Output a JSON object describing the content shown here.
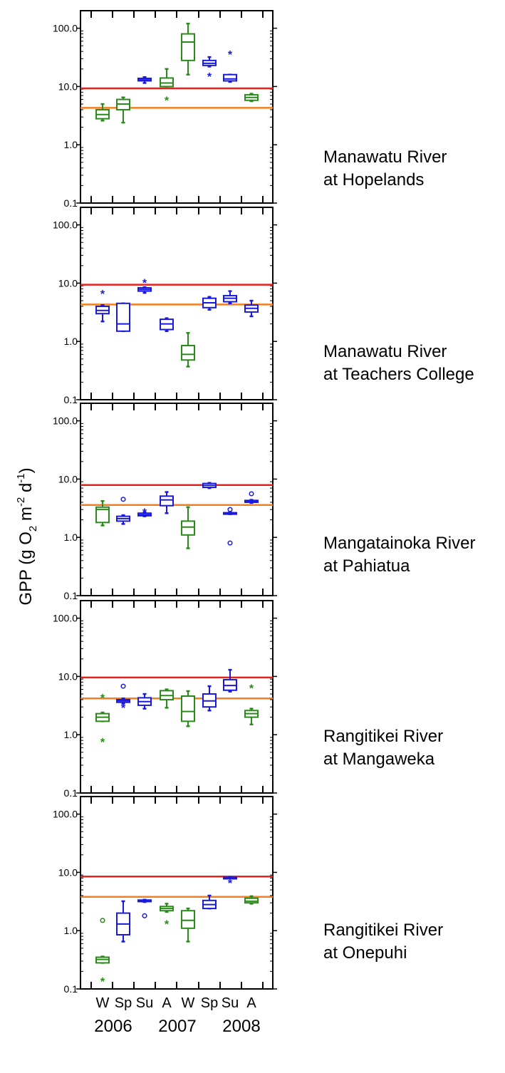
{
  "figure": {
    "ylabel_parts": [
      "GPP (g O",
      "2",
      " m",
      "-2",
      " d",
      "-1",
      ")"
    ],
    "season_labels": [
      "W",
      "Sp",
      "Su",
      "A",
      "W",
      "Sp",
      "Su",
      "A"
    ],
    "year_labels": [
      "2006",
      "2007",
      "2008"
    ],
    "ytick_labels": [
      "0.1",
      "1.0",
      "10.0",
      "100.0"
    ]
  },
  "sites": [
    {
      "line1": "Manawatu River",
      "line2": "at Hopelands"
    },
    {
      "line1": "Manawatu River",
      "line2": "at Teachers College"
    },
    {
      "line1": "Mangatainoka River",
      "line2": "at Pahiatua"
    },
    {
      "line1": "Rangitikei River",
      "line2": "at Mangaweka"
    },
    {
      "line1": "Rangitikei River",
      "line2": "at Onepuhi"
    }
  ],
  "chart_data": [
    {
      "type": "box",
      "site": "Manawatu River at Hopelands",
      "yscale": "log",
      "ylim": [
        0.1,
        200
      ],
      "reference_lines": [
        {
          "value": 9.3,
          "color": "#e8201e"
        },
        {
          "value": 4.3,
          "color": "#f47f20"
        }
      ],
      "boxes": [
        {
          "season": "W",
          "year": "2006",
          "color": "#2a8a1a",
          "min": 2.6,
          "q1": 2.8,
          "median": 3.3,
          "q3": 4.0,
          "max": 5.0,
          "outliers": []
        },
        {
          "season": "Sp",
          "year": "2006",
          "color": "#2a8a1a",
          "min": 2.4,
          "q1": 4.0,
          "median": 5.0,
          "q3": 6.0,
          "max": 6.5,
          "outliers": []
        },
        {
          "season": "Su",
          "year": "2006",
          "color": "#1a1adc",
          "min": 11.5,
          "q1": 12.5,
          "median": 13.0,
          "q3": 13.8,
          "max": 14.5,
          "outliers": []
        },
        {
          "season": "A",
          "year": "2007",
          "color": "#2a8a1a",
          "min": 10.0,
          "q1": 10.0,
          "median": 11.5,
          "q3": 14.0,
          "max": 20.0,
          "outliers": [
            {
              "value": 6.0,
              "marker": "*"
            }
          ]
        },
        {
          "season": "W",
          "year": "2007",
          "color": "#2a8a1a",
          "min": 16.0,
          "q1": 28.0,
          "median": 58.0,
          "q3": 80.0,
          "max": 120.0,
          "outliers": []
        },
        {
          "season": "Sp",
          "year": "2007",
          "color": "#1a1adc",
          "min": 22.0,
          "q1": 23.0,
          "median": 25.0,
          "q3": 28.0,
          "max": 32.0,
          "outliers": [
            {
              "value": 15.5,
              "marker": "*"
            }
          ]
        },
        {
          "season": "Su",
          "year": "2008",
          "color": "#1a1adc",
          "min": 12.0,
          "q1": 12.5,
          "median": 13.5,
          "q3": 16.0,
          "max": 16.0,
          "outliers": [
            {
              "value": 37.0,
              "marker": "*"
            }
          ]
        },
        {
          "season": "A",
          "year": "2008",
          "color": "#2a8a1a",
          "min": 5.6,
          "q1": 5.8,
          "median": 6.5,
          "q3": 7.2,
          "max": 7.5,
          "outliers": []
        }
      ]
    },
    {
      "type": "box",
      "site": "Manawatu River at Teachers College",
      "yscale": "log",
      "ylim": [
        0.1,
        200
      ],
      "reference_lines": [
        {
          "value": 9.4,
          "color": "#e8201e"
        },
        {
          "value": 4.3,
          "color": "#f47f20"
        }
      ],
      "boxes": [
        {
          "season": "W",
          "year": "2006",
          "color": "#1a1adc",
          "min": 2.2,
          "q1": 3.0,
          "median": 3.4,
          "q3": 4.0,
          "max": 4.2,
          "outliers": [
            {
              "value": 6.8,
              "marker": "*"
            }
          ]
        },
        {
          "season": "Sp",
          "year": "2006",
          "color": "#1a1adc",
          "min": 1.5,
          "q1": 1.5,
          "median": 2.0,
          "q3": 4.5,
          "max": 4.5,
          "outliers": []
        },
        {
          "season": "Su",
          "year": "2006",
          "color": "#1a1adc",
          "min": 6.8,
          "q1": 7.3,
          "median": 7.8,
          "q3": 8.3,
          "max": 8.5,
          "outliers": [
            {
              "value": 10.5,
              "marker": "*"
            }
          ]
        },
        {
          "season": "A",
          "year": "2007",
          "color": "#1a1adc",
          "min": 1.5,
          "q1": 1.6,
          "median": 2.0,
          "q3": 2.4,
          "max": 2.5,
          "outliers": []
        },
        {
          "season": "W",
          "year": "2007",
          "color": "#2a8a1a",
          "min": 0.37,
          "q1": 0.48,
          "median": 0.6,
          "q3": 0.85,
          "max": 1.4,
          "outliers": []
        },
        {
          "season": "Sp",
          "year": "2007",
          "color": "#1a1adc",
          "min": 3.5,
          "q1": 3.8,
          "median": 4.6,
          "q3": 5.5,
          "max": 5.8,
          "outliers": []
        },
        {
          "season": "Su",
          "year": "2008",
          "color": "#1a1adc",
          "min": 4.5,
          "q1": 4.8,
          "median": 5.5,
          "q3": 6.1,
          "max": 7.3,
          "outliers": []
        },
        {
          "season": "A",
          "year": "2008",
          "color": "#1a1adc",
          "min": 2.7,
          "q1": 3.2,
          "median": 3.7,
          "q3": 4.2,
          "max": 5.0,
          "outliers": []
        }
      ]
    },
    {
      "type": "box",
      "site": "Mangatainoka River at Pahiatua",
      "yscale": "log",
      "ylim": [
        0.1,
        200
      ],
      "reference_lines": [
        {
          "value": 7.9,
          "color": "#e8201e"
        },
        {
          "value": 3.6,
          "color": "#f47f20"
        }
      ],
      "boxes": [
        {
          "season": "W",
          "year": "2006",
          "color": "#2a8a1a",
          "min": 1.6,
          "q1": 1.8,
          "median": 3.0,
          "q3": 3.3,
          "max": 4.2,
          "outliers": []
        },
        {
          "season": "Sp",
          "year": "2006",
          "color": "#1a1adc",
          "min": 1.7,
          "q1": 1.9,
          "median": 2.1,
          "q3": 2.3,
          "max": 2.4,
          "outliers": [
            {
              "value": 4.5,
              "marker": "o"
            }
          ]
        },
        {
          "season": "Su",
          "year": "2006",
          "color": "#1a1adc",
          "min": 2.3,
          "q1": 2.35,
          "median": 2.45,
          "q3": 2.6,
          "max": 2.7,
          "outliers": [
            {
              "value": 2.8,
              "marker": "*"
            }
          ]
        },
        {
          "season": "A",
          "year": "2007",
          "color": "#1a1adc",
          "min": 2.6,
          "q1": 3.5,
          "median": 4.4,
          "q3": 5.1,
          "max": 6.0,
          "outliers": []
        },
        {
          "season": "W",
          "year": "2007",
          "color": "#2a8a1a",
          "min": 0.65,
          "q1": 1.1,
          "median": 1.5,
          "q3": 1.9,
          "max": 3.3,
          "outliers": []
        },
        {
          "season": "Sp",
          "year": "2007",
          "color": "#1a1adc",
          "min": 7.0,
          "q1": 7.2,
          "median": 7.8,
          "q3": 8.4,
          "max": 8.6,
          "outliers": []
        },
        {
          "season": "Su",
          "year": "2008",
          "color": "#1a1adc",
          "min": 2.5,
          "q1": 2.5,
          "median": 2.6,
          "q3": 2.65,
          "max": 2.7,
          "outliers": [
            {
              "value": 3.0,
              "marker": "o"
            },
            {
              "value": 0.8,
              "marker": "o"
            }
          ]
        },
        {
          "season": "A",
          "year": "2008",
          "color": "#1a1adc",
          "min": 3.9,
          "q1": 4.0,
          "median": 4.2,
          "q3": 4.3,
          "max": 4.4,
          "outliers": [
            {
              "value": 5.6,
              "marker": "o"
            }
          ]
        }
      ]
    },
    {
      "type": "box",
      "site": "Rangitikei River at Mangaweka",
      "yscale": "log",
      "ylim": [
        0.1,
        200
      ],
      "reference_lines": [
        {
          "value": 9.6,
          "color": "#e8201e"
        },
        {
          "value": 4.2,
          "color": "#f47f20"
        }
      ],
      "boxes": [
        {
          "season": "W",
          "year": "2006",
          "color": "#2a8a1a",
          "min": 1.7,
          "q1": 1.7,
          "median": 2.0,
          "q3": 2.3,
          "max": 2.4,
          "outliers": [
            {
              "value": 4.5,
              "marker": "*"
            },
            {
              "value": 0.78,
              "marker": "*"
            }
          ]
        },
        {
          "season": "Sp",
          "year": "2006",
          "color": "#1a1adc",
          "min": 3.4,
          "q1": 3.6,
          "median": 3.8,
          "q3": 4.0,
          "max": 4.2,
          "outliers": [
            {
              "value": 6.8,
              "marker": "o"
            },
            {
              "value": 3.0,
              "marker": "*"
            }
          ]
        },
        {
          "season": "Su",
          "year": "2006",
          "color": "#1a1adc",
          "min": 2.8,
          "q1": 3.2,
          "median": 3.7,
          "q3": 4.3,
          "max": 5.0,
          "outliers": []
        },
        {
          "season": "A",
          "year": "2007",
          "color": "#2a8a1a",
          "min": 2.9,
          "q1": 4.0,
          "median": 4.7,
          "q3": 5.7,
          "max": 6.0,
          "outliers": []
        },
        {
          "season": "W",
          "year": "2007",
          "color": "#2a8a1a",
          "min": 1.4,
          "q1": 1.7,
          "median": 2.5,
          "q3": 4.6,
          "max": 5.6,
          "outliers": []
        },
        {
          "season": "Sp",
          "year": "2007",
          "color": "#1a1adc",
          "min": 2.6,
          "q1": 3.0,
          "median": 3.8,
          "q3": 5.0,
          "max": 6.8,
          "outliers": []
        },
        {
          "season": "Su",
          "year": "2008",
          "color": "#1a1adc",
          "min": 5.5,
          "q1": 5.8,
          "median": 7.0,
          "q3": 8.8,
          "max": 13.0,
          "outliers": []
        },
        {
          "season": "A",
          "year": "2008",
          "color": "#2a8a1a",
          "min": 1.5,
          "q1": 2.0,
          "median": 2.3,
          "q3": 2.6,
          "max": 2.8,
          "outliers": [
            {
              "value": 6.5,
              "marker": "*"
            }
          ]
        }
      ]
    },
    {
      "type": "box",
      "site": "Rangitikei River at Onepuhi",
      "yscale": "log",
      "ylim": [
        0.1,
        200
      ],
      "reference_lines": [
        {
          "value": 8.5,
          "color": "#e8201e"
        },
        {
          "value": 3.8,
          "color": "#f47f20"
        }
      ],
      "boxes": [
        {
          "season": "W",
          "year": "2006",
          "color": "#2a8a1a",
          "min": 0.28,
          "q1": 0.28,
          "median": 0.32,
          "q3": 0.35,
          "max": 0.36,
          "outliers": [
            {
              "value": 1.5,
              "marker": "o"
            },
            {
              "value": 0.14,
              "marker": "*"
            }
          ]
        },
        {
          "season": "Sp",
          "year": "2006",
          "color": "#1a1adc",
          "min": 0.65,
          "q1": 0.85,
          "median": 1.3,
          "q3": 2.0,
          "max": 3.2,
          "outliers": []
        },
        {
          "season": "Su",
          "year": "2006",
          "color": "#1a1adc",
          "min": 3.1,
          "q1": 3.15,
          "median": 3.25,
          "q3": 3.35,
          "max": 3.4,
          "outliers": [
            {
              "value": 1.8,
              "marker": "o"
            }
          ]
        },
        {
          "season": "A",
          "year": "2007",
          "color": "#2a8a1a",
          "min": 2.1,
          "q1": 2.2,
          "median": 2.4,
          "q3": 2.6,
          "max": 2.9,
          "outliers": [
            {
              "value": 1.35,
              "marker": "*"
            }
          ]
        },
        {
          "season": "W",
          "year": "2007",
          "color": "#2a8a1a",
          "min": 0.65,
          "q1": 1.1,
          "median": 1.5,
          "q3": 2.2,
          "max": 2.4,
          "outliers": []
        },
        {
          "season": "Sp",
          "year": "2007",
          "color": "#1a1adc",
          "min": 2.4,
          "q1": 2.4,
          "median": 2.8,
          "q3": 3.3,
          "max": 4.0,
          "outliers": []
        },
        {
          "season": "Su",
          "year": "2008",
          "color": "#1a1adc",
          "min": 7.9,
          "q1": 8.0,
          "median": 8.1,
          "q3": 8.2,
          "max": 8.3,
          "outliers": [
            {
              "value": 6.8,
              "marker": "*"
            }
          ]
        },
        {
          "season": "A",
          "year": "2008",
          "color": "#2a8a1a",
          "min": 2.9,
          "q1": 3.0,
          "median": 3.2,
          "q3": 3.6,
          "max": 3.9,
          "outliers": []
        }
      ]
    }
  ]
}
